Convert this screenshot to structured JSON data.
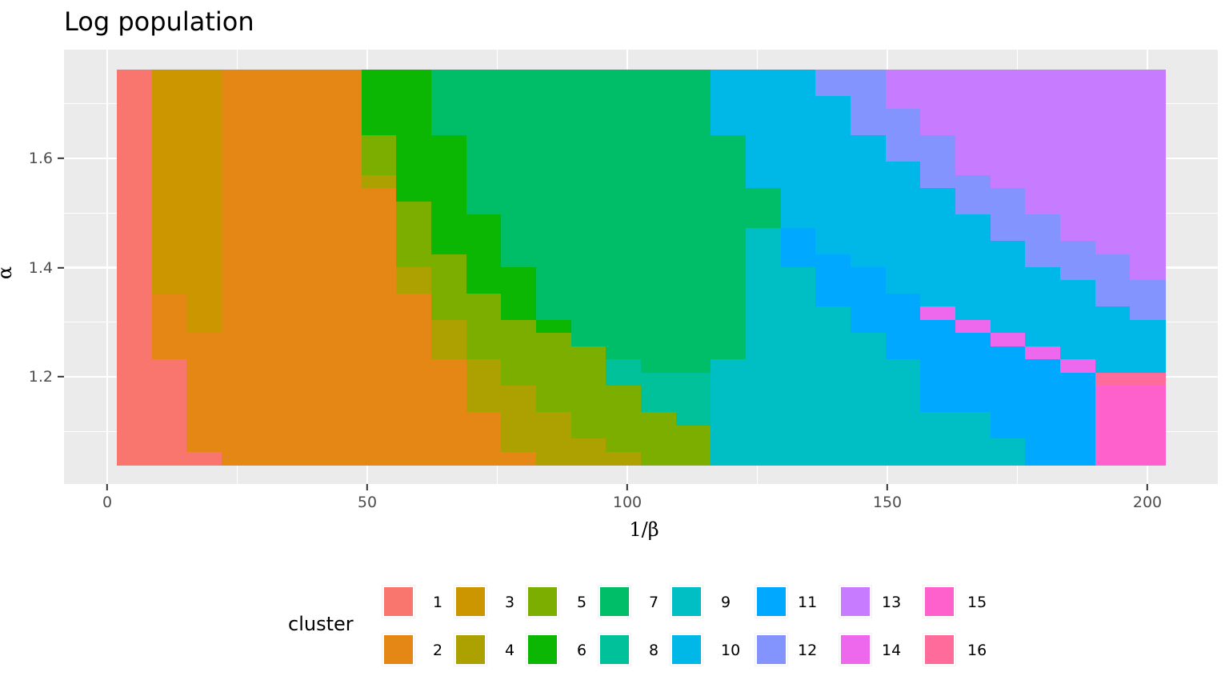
{
  "title": "Log population",
  "chart_data": {
    "type": "heatmap",
    "title": "Log population",
    "xlabel": "1/β",
    "ylabel": "α",
    "xlim": [
      -2,
      211
    ],
    "ylim": [
      1.0,
      1.8
    ],
    "x_ticks": [
      0,
      50,
      100,
      150,
      200
    ],
    "y_ticks": [
      "1.2",
      "1.4",
      "1.6"
    ],
    "grid": true,
    "legend_title": "cluster",
    "legend_position": "bottom",
    "x_range": [
      1.85,
      203.4
    ],
    "y_range": [
      1.039,
      1.763
    ],
    "n_cols": 30,
    "n_rows": 30,
    "note": "columns listed left to right; each is run-length [cluster, row_count] from top (α≈1.76) to bottom (α≈1.04)",
    "columns": [
      [
        [
          1,
          30
        ]
      ],
      [
        [
          3,
          17
        ],
        [
          2,
          5
        ],
        [
          1,
          8
        ]
      ],
      [
        [
          3,
          20
        ],
        [
          2,
          9
        ],
        [
          1,
          1
        ]
      ],
      [
        [
          2,
          30
        ]
      ],
      [
        [
          2,
          30
        ]
      ],
      [
        [
          2,
          30
        ]
      ],
      [
        [
          2,
          30
        ]
      ],
      [
        [
          6,
          5
        ],
        [
          5,
          3
        ],
        [
          4,
          1
        ],
        [
          2,
          21
        ]
      ],
      [
        [
          6,
          10
        ],
        [
          5,
          5
        ],
        [
          4,
          2
        ],
        [
          2,
          13
        ]
      ],
      [
        [
          7,
          5
        ],
        [
          6,
          9
        ],
        [
          5,
          5
        ],
        [
          4,
          3
        ],
        [
          2,
          8
        ]
      ],
      [
        [
          7,
          11
        ],
        [
          6,
          6
        ],
        [
          5,
          5
        ],
        [
          4,
          4
        ],
        [
          2,
          4
        ]
      ],
      [
        [
          7,
          15
        ],
        [
          6,
          4
        ],
        [
          5,
          5
        ],
        [
          4,
          5
        ],
        [
          2,
          1
        ]
      ],
      [
        [
          7,
          19
        ],
        [
          6,
          1
        ],
        [
          5,
          6
        ],
        [
          4,
          4
        ]
      ],
      [
        [
          7,
          21
        ],
        [
          5,
          7
        ],
        [
          4,
          2
        ]
      ],
      [
        [
          7,
          22
        ],
        [
          8,
          2
        ],
        [
          5,
          5
        ],
        [
          4,
          1
        ]
      ],
      [
        [
          7,
          23
        ],
        [
          8,
          3
        ],
        [
          5,
          4
        ]
      ],
      [
        [
          7,
          23
        ],
        [
          8,
          4
        ],
        [
          5,
          3
        ]
      ],
      [
        [
          10,
          5
        ],
        [
          7,
          17
        ],
        [
          9,
          8
        ]
      ],
      [
        [
          10,
          9
        ],
        [
          7,
          3
        ],
        [
          9,
          18
        ]
      ],
      [
        [
          10,
          12
        ],
        [
          11,
          3
        ],
        [
          9,
          15
        ]
      ],
      [
        [
          12,
          2
        ],
        [
          10,
          12
        ],
        [
          11,
          4
        ],
        [
          9,
          12
        ]
      ],
      [
        [
          12,
          5
        ],
        [
          10,
          10
        ],
        [
          11,
          5
        ],
        [
          9,
          10
        ]
      ],
      [
        [
          13,
          3
        ],
        [
          12,
          4
        ],
        [
          10,
          10
        ],
        [
          11,
          5
        ],
        [
          9,
          8
        ]
      ],
      [
        [
          13,
          5
        ],
        [
          12,
          4
        ],
        [
          10,
          9
        ],
        [
          14,
          1
        ],
        [
          11,
          7
        ],
        [
          9,
          4
        ]
      ],
      [
        [
          13,
          8
        ],
        [
          12,
          3
        ],
        [
          10,
          8
        ],
        [
          14,
          1
        ],
        [
          11,
          6
        ],
        [
          9,
          4
        ]
      ],
      [
        [
          13,
          9
        ],
        [
          12,
          4
        ],
        [
          10,
          7
        ],
        [
          14,
          1
        ],
        [
          11,
          7
        ],
        [
          9,
          2
        ]
      ],
      [
        [
          13,
          11
        ],
        [
          12,
          4
        ],
        [
          10,
          6
        ],
        [
          14,
          1
        ],
        [
          11,
          8
        ]
      ],
      [
        [
          13,
          13
        ],
        [
          12,
          3
        ],
        [
          10,
          6
        ],
        [
          14,
          1
        ],
        [
          11,
          7
        ]
      ],
      [
        [
          13,
          14
        ],
        [
          12,
          4
        ],
        [
          10,
          5
        ],
        [
          16,
          1
        ],
        [
          15,
          6
        ]
      ],
      [
        [
          13,
          16
        ],
        [
          12,
          3
        ],
        [
          10,
          4
        ],
        [
          16,
          1
        ],
        [
          15,
          6
        ]
      ]
    ]
  },
  "legend": {
    "title": "cluster",
    "items": [
      {
        "label": "1",
        "color": "#F8766D"
      },
      {
        "label": "2",
        "color": "#E58700"
      },
      {
        "label": "3",
        "color": "#C99800"
      },
      {
        "label": "4",
        "color": "#A3A500"
      },
      {
        "label": "5",
        "color": "#6BB100"
      },
      {
        "label": "6",
        "color": "#00BA38"
      },
      {
        "label": "7",
        "color": "#00BF7D"
      },
      {
        "label": "8",
        "color": "#00C0AF"
      },
      {
        "label": "9",
        "color": "#00BCD8"
      },
      {
        "label": "10",
        "color": "#00B0F6"
      },
      {
        "label": "11",
        "color": "#619CFF"
      },
      {
        "label": "12",
        "color": "#B983FF"
      },
      {
        "label": "13",
        "color": "#E76BF3"
      },
      {
        "label": "14",
        "color": "#FD61D1"
      },
      {
        "label": "15",
        "color": "#FF67A4"
      },
      {
        "label": "16",
        "color": "#FF6C91"
      }
    ]
  },
  "render_colors": {
    "1": "#F8766D",
    "2": "#E58714",
    "3": "#CC9600",
    "4": "#ACA100",
    "5": "#7CAE00",
    "6": "#0BB702",
    "7": "#00BE67",
    "8": "#00C19A",
    "9": "#00BFC4",
    "10": "#00B8E7",
    "11": "#00A9FF",
    "12": "#8494FF",
    "13": "#C77CFF",
    "14": "#ED68ED",
    "15": "#FF61CC",
    "16": "#FF6C9C"
  },
  "axes": {
    "x_tick_labels": [
      "0",
      "50",
      "100",
      "150",
      "200"
    ],
    "y_tick_labels": [
      "1.2",
      "1.4",
      "1.6"
    ],
    "xlabel": "1/β",
    "ylabel": "α"
  }
}
